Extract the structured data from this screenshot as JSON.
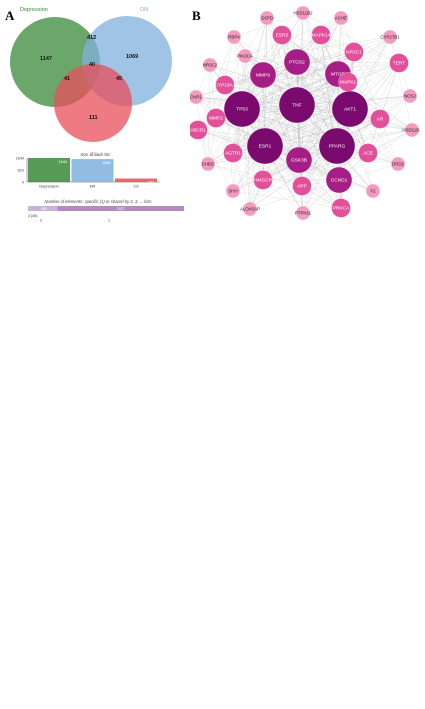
{
  "panel_a_label": "A",
  "panel_b_label": "B",
  "venn": {
    "sets": [
      {
        "name": "Depression",
        "color": "#3a8a3a"
      },
      {
        "name": "DN",
        "color": "#7fb0dd"
      },
      {
        "name": "CS",
        "color": "#e84e5a"
      }
    ],
    "regions": [
      {
        "key": "D_only",
        "value": "1147"
      },
      {
        "key": "D_DN",
        "value": "412"
      },
      {
        "key": "DN_only",
        "value": "1069"
      },
      {
        "key": "all",
        "value": "40"
      },
      {
        "key": "D_CS",
        "value": "41"
      },
      {
        "key": "DN_CS",
        "value": "45"
      },
      {
        "key": "CS_only",
        "value": "111"
      }
    ]
  },
  "chart_data": [
    {
      "type": "bar",
      "title": "Size of each list",
      "categories": [
        "Depression",
        "DN",
        "CS"
      ],
      "values": [
        1640,
        1566,
        237
      ],
      "value_labels": [
        "1640",
        "1566",
        "237"
      ],
      "colors": [
        "#3a8a3a",
        "#7fb0dd",
        "#e84e5a"
      ],
      "yticks": [
        "1640",
        "820",
        "0"
      ],
      "ylim": [
        0,
        1640
      ]
    },
    {
      "type": "bar",
      "title": "Number of elements: specific (1) or shared by 2, 3, ... lists",
      "orientation": "horizontal-stacked",
      "categories": [
        "3 (40)",
        "2",
        "1"
      ],
      "values": [
        40,
        498,
        2327
      ],
      "value_labels": [
        "",
        "498",
        "2327"
      ],
      "colors": [
        "#c9b3d4",
        "#c9b3d4",
        "#b48ac2"
      ]
    }
  ],
  "network": {
    "nodes": [
      {
        "label": "HSD11B2",
        "level": 0
      },
      {
        "label": "ACHE",
        "level": 0
      },
      {
        "label": "G6PD",
        "level": 0
      },
      {
        "label": "ESR2",
        "level": 1
      },
      {
        "label": "MAPK14",
        "level": 1
      },
      {
        "label": "CYP27B1",
        "level": 0
      },
      {
        "label": "RBP4",
        "level": 0
      },
      {
        "label": "PIK3CA",
        "level": 0
      },
      {
        "label": "PTGS2",
        "level": 2
      },
      {
        "label": "NR3C1",
        "level": 1
      },
      {
        "label": "TERT",
        "level": 1
      },
      {
        "label": "NR3C2",
        "level": 0
      },
      {
        "label": "MMP9",
        "level": 2
      },
      {
        "label": "MTOR",
        "level": 2
      },
      {
        "label": "CYP19A1",
        "level": 1
      },
      {
        "label": "MAPK1",
        "level": 1
      },
      {
        "label": "NOS2",
        "level": 0
      },
      {
        "label": "CNR1",
        "level": 0
      },
      {
        "label": "TNF",
        "level": 3
      },
      {
        "label": "TP53",
        "level": 3
      },
      {
        "label": "AKT1",
        "level": 3
      },
      {
        "label": "MMP2",
        "level": 1
      },
      {
        "label": "AR",
        "level": 1
      },
      {
        "label": "HSD11B1",
        "level": 0
      },
      {
        "label": "ABCB1",
        "level": 1
      },
      {
        "label": "ESR1",
        "level": 3
      },
      {
        "label": "PPARG",
        "level": 3
      },
      {
        "label": "AGTR1",
        "level": 1
      },
      {
        "label": "ACE",
        "level": 1
      },
      {
        "label": "SHBG",
        "level": 0
      },
      {
        "label": "GSK3B",
        "level": 2
      },
      {
        "label": "DRD2",
        "level": 0
      },
      {
        "label": "HMGCR",
        "level": 1
      },
      {
        "label": "CCND1",
        "level": 2
      },
      {
        "label": "SHH",
        "level": 0
      },
      {
        "label": "APP",
        "level": 1
      },
      {
        "label": "F2",
        "level": 0
      },
      {
        "label": "ALOX5AP",
        "level": 0
      },
      {
        "label": "PTPN11",
        "level": 0
      },
      {
        "label": "PRKCA",
        "level": 1
      }
    ],
    "colors": [
      "#f49ac1",
      "#e2509a",
      "#a61e85",
      "#7a0a6e"
    ]
  }
}
